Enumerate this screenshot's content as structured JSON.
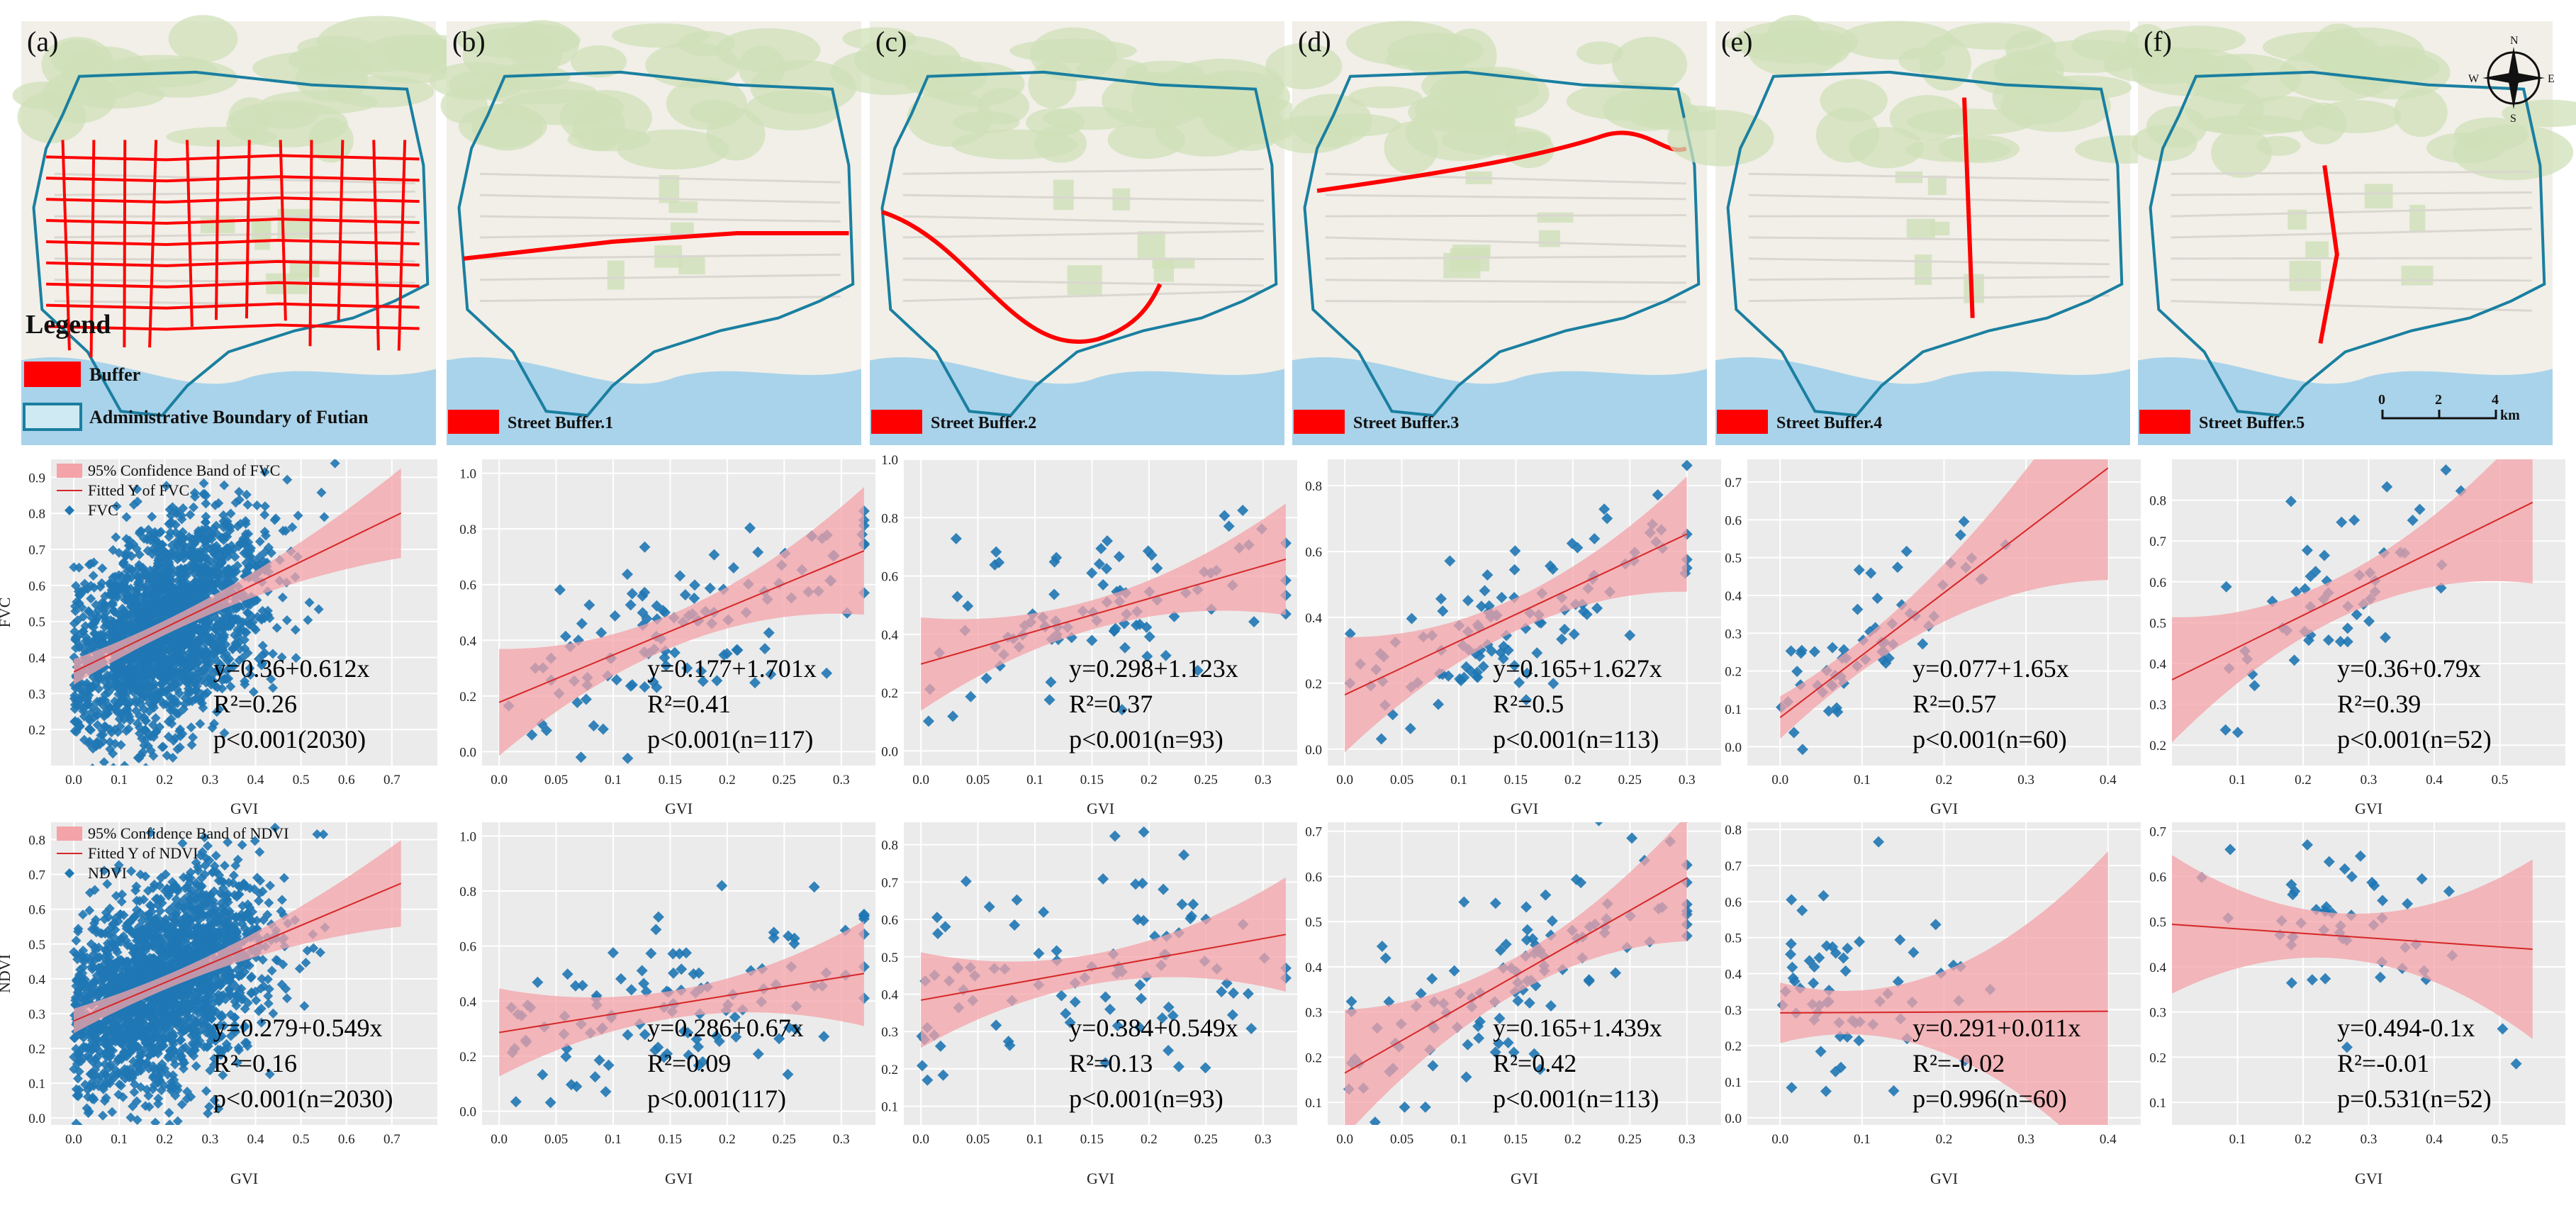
{
  "colors": {
    "point": "#1f77b4",
    "band": "#f4a3a8",
    "fitline": "#d62728",
    "boundary": "#1a7fa0",
    "buffer": "#ff0000",
    "plot_bg": "#ebebeb",
    "map_land": "#f1efe8",
    "map_green": "#cfe0b8",
    "map_water": "#a9d3ea"
  },
  "maps": [
    {
      "label": "(a)",
      "street": "",
      "buffer_style": "network"
    },
    {
      "label": "(b)",
      "street": "Street Buffer.1",
      "buffer_style": "horizontal"
    },
    {
      "label": "(c)",
      "street": "Street Buffer.2",
      "buffer_style": "arc"
    },
    {
      "label": "(d)",
      "street": "Street Buffer.3",
      "buffer_style": "north"
    },
    {
      "label": "(e)",
      "street": "Street Buffer.4",
      "buffer_style": "vertical-east"
    },
    {
      "label": "(f)",
      "street": "Street Buffer.5",
      "buffer_style": "vertical-center"
    }
  ],
  "map_legend": {
    "title": "Legend",
    "buffer": "Buffer",
    "boundary": "Administrative Boundary of Futian"
  },
  "compass": {
    "n": "N",
    "s": "S",
    "e": "E",
    "w": "W"
  },
  "scale_bar": {
    "ticks": [
      "0",
      "2",
      "4"
    ],
    "unit": "km"
  },
  "fvc_legend": {
    "band": "95% Confidence Band of FVC",
    "fit": "Fitted Y of FVC",
    "points": "FVC"
  },
  "ndvi_legend": {
    "band": "95% Confidence Band of NDVI",
    "fit": "Fitted Y of NDVI",
    "points": "NDVI"
  },
  "chart_data": [
    {
      "type": "scatter",
      "row": "FVC",
      "panel": 1,
      "xlabel": "GVI",
      "ylabel": "FVC",
      "xlim": [
        -0.05,
        0.8
      ],
      "xticks": [
        0.0,
        0.1,
        0.2,
        0.3,
        0.4,
        0.5,
        0.6,
        0.7
      ],
      "ylim": [
        0.1,
        0.95
      ],
      "yticks": [
        0.2,
        0.3,
        0.4,
        0.5,
        0.6,
        0.7,
        0.8,
        0.9
      ],
      "intercept": 0.36,
      "slope": 0.612,
      "band_width": 0.02,
      "n": 2030,
      "x_center": 0.2,
      "x_spread": 0.11,
      "x_max": 0.72,
      "noise": 0.14,
      "equation": "y=0.36+0.612x",
      "r2": "R²=0.26",
      "p": "p<0.001(2030)"
    },
    {
      "type": "scatter",
      "row": "FVC",
      "panel": 2,
      "xlabel": "GVI",
      "xlim": [
        -0.015,
        0.33
      ],
      "xticks": [
        0.0,
        0.05,
        0.1,
        0.15,
        0.2,
        0.25,
        0.3
      ],
      "ylim": [
        -0.05,
        1.05
      ],
      "yticks": [
        0.0,
        0.2,
        0.4,
        0.6,
        0.8,
        1.0
      ],
      "intercept": 0.177,
      "slope": 1.701,
      "band_width": 0.06,
      "n": 117,
      "x_center": 0.15,
      "x_spread": 0.09,
      "x_max": 0.32,
      "noise": 0.15,
      "equation": "y=0.177+1.701x",
      "r2": "R²=0.41",
      "p": "p<0.001(n=117)"
    },
    {
      "type": "scatter",
      "row": "FVC",
      "panel": 3,
      "xlabel": "GVI",
      "xlim": [
        -0.015,
        0.33
      ],
      "xticks": [
        0.0,
        0.05,
        0.1,
        0.15,
        0.2,
        0.25,
        0.3
      ],
      "ylim": [
        -0.05,
        1.0
      ],
      "yticks": [
        0.0,
        0.2,
        0.4,
        0.6,
        0.8,
        1.0
      ],
      "intercept": 0.298,
      "slope": 1.123,
      "band_width": 0.05,
      "n": 93,
      "x_center": 0.15,
      "x_spread": 0.09,
      "x_max": 0.32,
      "noise": 0.13,
      "equation": "y=0.298+1.123x",
      "r2": "R²=0.37",
      "p": "p<0.001(n=93)"
    },
    {
      "type": "scatter",
      "row": "FVC",
      "panel": 4,
      "xlabel": "GVI",
      "xlim": [
        -0.015,
        0.33
      ],
      "xticks": [
        0.0,
        0.05,
        0.1,
        0.15,
        0.2,
        0.25,
        0.3
      ],
      "ylim": [
        -0.05,
        0.88
      ],
      "yticks": [
        0.0,
        0.2,
        0.4,
        0.6,
        0.8
      ],
      "intercept": 0.165,
      "slope": 1.627,
      "band_width": 0.05,
      "n": 113,
      "x_center": 0.15,
      "x_spread": 0.08,
      "x_max": 0.3,
      "noise": 0.11,
      "equation": "y=0.165+1.627x",
      "r2": "R²=0.5",
      "p": "p<0.001(n=113)"
    },
    {
      "type": "scatter",
      "row": "FVC",
      "panel": 5,
      "xlabel": "GVI",
      "xlim": [
        -0.04,
        0.44
      ],
      "xticks": [
        0.0,
        0.1,
        0.2,
        0.3,
        0.4
      ],
      "ylim": [
        -0.05,
        0.76
      ],
      "yticks": [
        0.0,
        0.1,
        0.2,
        0.3,
        0.4,
        0.5,
        0.6,
        0.7
      ],
      "intercept": 0.077,
      "slope": 1.65,
      "band_width": 0.04,
      "n": 60,
      "x_center": 0.08,
      "x_spread": 0.08,
      "x_max": 0.4,
      "noise": 0.09,
      "equation": "y=0.077+1.65x",
      "r2": "R²=0.57",
      "p": "p<0.001(n=60)"
    },
    {
      "type": "scatter",
      "row": "FVC",
      "panel": 6,
      "xlabel": "GVI",
      "xlim": [
        0.0,
        0.6
      ],
      "xticks": [
        0.1,
        0.2,
        0.3,
        0.4,
        0.5
      ],
      "ylim": [
        0.15,
        0.9
      ],
      "yticks": [
        0.2,
        0.3,
        0.4,
        0.5,
        0.6,
        0.7,
        0.8
      ],
      "intercept": 0.36,
      "slope": 0.79,
      "band_width": 0.05,
      "n": 52,
      "x_center": 0.25,
      "x_spread": 0.1,
      "x_max": 0.55,
      "noise": 0.1,
      "equation": "y=0.36+0.79x",
      "r2": "R²=0.39",
      "p": "p<0.001(n=52)"
    },
    {
      "type": "scatter",
      "row": "NDVI",
      "panel": 1,
      "xlabel": "GVI",
      "ylabel": "NDVI",
      "xlim": [
        -0.05,
        0.8
      ],
      "xticks": [
        0.0,
        0.1,
        0.2,
        0.3,
        0.4,
        0.5,
        0.6,
        0.7
      ],
      "ylim": [
        -0.02,
        0.85
      ],
      "yticks": [
        0.0,
        0.1,
        0.2,
        0.3,
        0.4,
        0.5,
        0.6,
        0.7,
        0.8
      ],
      "intercept": 0.279,
      "slope": 0.549,
      "band_width": 0.02,
      "n": 2030,
      "x_center": 0.2,
      "x_spread": 0.11,
      "x_max": 0.72,
      "noise": 0.14,
      "equation": "y=0.279+0.549x",
      "r2": "R²=0.16",
      "p": "p<0.001(n=2030)"
    },
    {
      "type": "scatter",
      "row": "NDVI",
      "panel": 2,
      "xlabel": "GVI",
      "xlim": [
        -0.015,
        0.33
      ],
      "xticks": [
        0.0,
        0.05,
        0.1,
        0.15,
        0.2,
        0.25,
        0.3
      ],
      "ylim": [
        -0.05,
        1.05
      ],
      "yticks": [
        0.0,
        0.2,
        0.4,
        0.6,
        0.8,
        1.0
      ],
      "intercept": 0.286,
      "slope": 0.67,
      "band_width": 0.05,
      "n": 117,
      "x_center": 0.15,
      "x_spread": 0.09,
      "x_max": 0.32,
      "noise": 0.14,
      "equation": "y=0.286+0.67x",
      "r2": "R²=0.09",
      "p": "p<0.001(117)"
    },
    {
      "type": "scatter",
      "row": "NDVI",
      "panel": 3,
      "xlabel": "GVI",
      "xlim": [
        -0.015,
        0.33
      ],
      "xticks": [
        0.0,
        0.05,
        0.1,
        0.15,
        0.2,
        0.25,
        0.3
      ],
      "ylim": [
        0.05,
        0.86
      ],
      "yticks": [
        0.1,
        0.2,
        0.3,
        0.4,
        0.5,
        0.6,
        0.7,
        0.8
      ],
      "intercept": 0.384,
      "slope": 0.549,
      "band_width": 0.04,
      "n": 93,
      "x_center": 0.15,
      "x_spread": 0.09,
      "x_max": 0.32,
      "noise": 0.13,
      "equation": "y=0.384+0.549x",
      "r2": "R²=0.13",
      "p": "p<0.001(n=93)"
    },
    {
      "type": "scatter",
      "row": "NDVI",
      "panel": 4,
      "xlabel": "GVI",
      "xlim": [
        -0.015,
        0.33
      ],
      "xticks": [
        0.0,
        0.05,
        0.1,
        0.15,
        0.2,
        0.25,
        0.3
      ],
      "ylim": [
        0.05,
        0.72
      ],
      "yticks": [
        0.1,
        0.2,
        0.3,
        0.4,
        0.5,
        0.6,
        0.7
      ],
      "intercept": 0.165,
      "slope": 1.439,
      "band_width": 0.04,
      "n": 113,
      "x_center": 0.15,
      "x_spread": 0.08,
      "x_max": 0.3,
      "noise": 0.09,
      "equation": "y=0.165+1.439x",
      "r2": "R²=0.42",
      "p": "p<0.001(n=113)"
    },
    {
      "type": "scatter",
      "row": "NDVI",
      "panel": 5,
      "xlabel": "GVI",
      "xlim": [
        -0.04,
        0.44
      ],
      "xticks": [
        0.0,
        0.1,
        0.2,
        0.3,
        0.4
      ],
      "ylim": [
        -0.02,
        0.82
      ],
      "yticks": [
        0.0,
        0.1,
        0.2,
        0.3,
        0.4,
        0.5,
        0.6,
        0.7,
        0.8
      ],
      "intercept": 0.291,
      "slope": 0.011,
      "band_width": 0.06,
      "n": 60,
      "x_center": 0.08,
      "x_spread": 0.08,
      "x_max": 0.4,
      "noise": 0.14,
      "equation": "y=0.291+0.011x",
      "r2": "R²=-0.02",
      "p": "p=0.996(n=60)"
    },
    {
      "type": "scatter",
      "row": "NDVI",
      "panel": 6,
      "xlabel": "GVI",
      "xlim": [
        0.0,
        0.6
      ],
      "xticks": [
        0.1,
        0.2,
        0.3,
        0.4,
        0.5
      ],
      "ylim": [
        0.05,
        0.72
      ],
      "yticks": [
        0.1,
        0.2,
        0.3,
        0.4,
        0.5,
        0.6,
        0.7
      ],
      "intercept": 0.494,
      "slope": -0.1,
      "band_width": 0.05,
      "n": 52,
      "x_center": 0.25,
      "x_spread": 0.1,
      "x_max": 0.55,
      "noise": 0.11,
      "equation": "y=0.494-0.1x",
      "r2": "R²=-0.01",
      "p": "p=0.531(n=52)"
    }
  ]
}
